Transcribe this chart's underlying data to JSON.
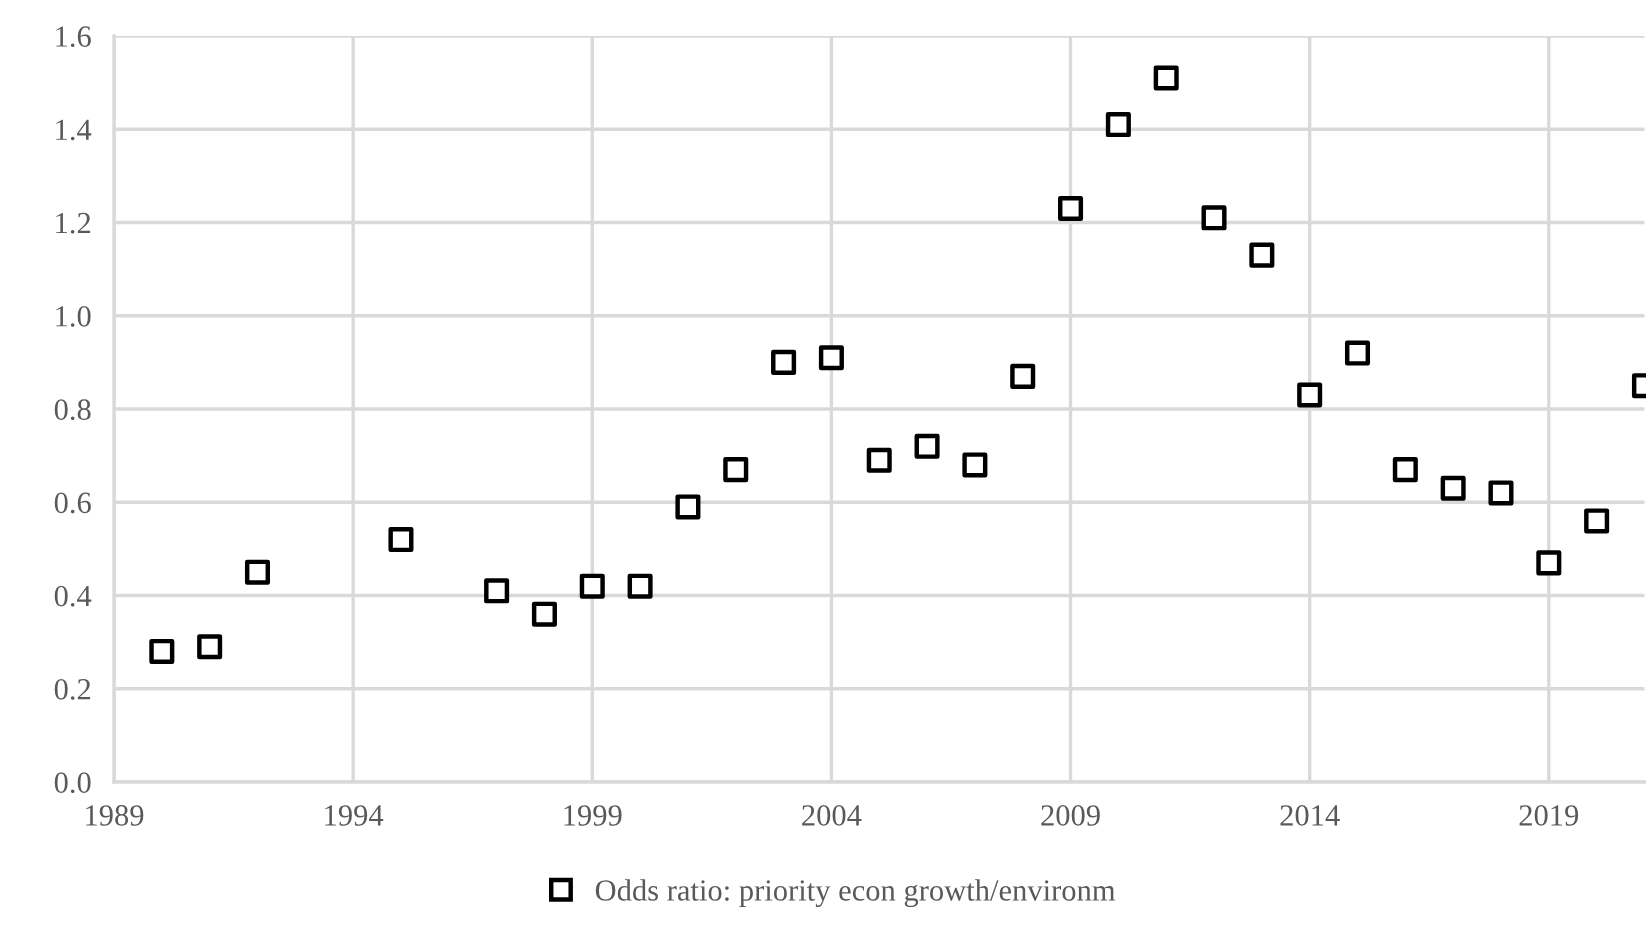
{
  "chart_data": {
    "type": "scatter",
    "x": [
      1990,
      1991,
      1992,
      1995,
      1997,
      1998,
      1999,
      2000,
      2001,
      2002,
      2003,
      2004,
      2005,
      2006,
      2007,
      2008,
      2009,
      2010,
      2011,
      2012,
      2013,
      2014,
      2015,
      2016,
      2017,
      2018,
      2019,
      2020,
      2021
    ],
    "series": [
      {
        "name": "Odds ratio: priority econ growth/environm",
        "color": "#000000",
        "values": [
          0.28,
          0.29,
          0.45,
          0.52,
          0.41,
          0.36,
          0.42,
          0.42,
          0.59,
          0.67,
          0.9,
          0.91,
          0.69,
          0.72,
          0.68,
          0.87,
          1.23,
          1.41,
          1.51,
          1.21,
          1.13,
          0.83,
          0.92,
          0.67,
          0.63,
          0.62,
          0.47,
          0.56,
          0.85
        ]
      }
    ],
    "xlim": [
      1989,
      2021
    ],
    "xticks": [
      1989,
      1994,
      1999,
      2004,
      2009,
      2014,
      2019
    ],
    "ylim": [
      0,
      1.6
    ],
    "yticks": [
      {
        "value": 0,
        "label": "0.0"
      },
      {
        "value": 0.2,
        "label": "0.2"
      },
      {
        "value": 0.4,
        "label": "0.4"
      },
      {
        "value": 0.6,
        "label": "0.6"
      },
      {
        "value": 0.8,
        "label": "0.8"
      },
      {
        "value": 1.0,
        "label": "1.0"
      },
      {
        "value": 1.2,
        "label": "1.2"
      },
      {
        "value": 1.4,
        "label": "1.4"
      },
      {
        "value": 1.6,
        "label": "1.6"
      }
    ],
    "grid": true,
    "legend": "bottom",
    "marker": "square"
  }
}
